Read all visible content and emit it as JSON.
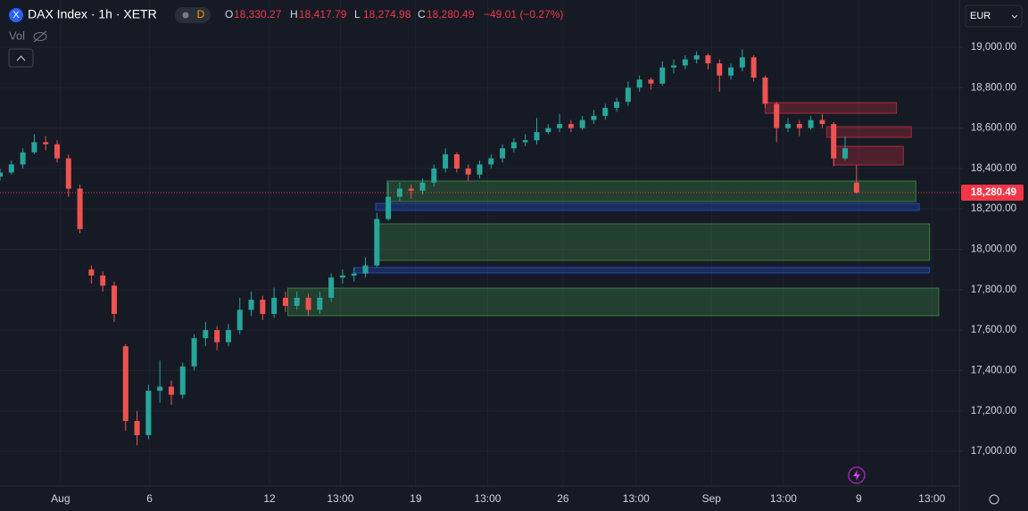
{
  "header": {
    "symbol_icon": "X",
    "title": "DAX Index · 1h · XETR",
    "badge": "D",
    "ohlc": [
      {
        "key": "O",
        "text": "18,330.27"
      },
      {
        "key": "H",
        "text": "18,417.79"
      },
      {
        "key": "L",
        "text": "18,274.98"
      },
      {
        "key": "C",
        "text": "18,280.49"
      }
    ],
    "change": "−49.01 (−0.27%)",
    "volume": "Vol",
    "currency": "EUR"
  },
  "chart_data": {
    "type": "candlestick",
    "up_color": "#26a69a",
    "down_color": "#ef5350",
    "grid": true,
    "xlim": [
      0,
      84
    ],
    "ylim": [
      16828,
      19234
    ],
    "xticks": [
      {
        "value": 5.3,
        "label": "Aug"
      },
      {
        "value": 13.1,
        "label": "6"
      },
      {
        "value": 23.6,
        "label": "12"
      },
      {
        "value": 29.8,
        "label": "13:00"
      },
      {
        "value": 36.4,
        "label": "19"
      },
      {
        "value": 42.7,
        "label": "13:00"
      },
      {
        "value": 49.3,
        "label": "26"
      },
      {
        "value": 55.7,
        "label": "13:00"
      },
      {
        "value": 62.3,
        "label": "Sep"
      },
      {
        "value": 68.6,
        "label": "13:00"
      },
      {
        "value": 75.2,
        "label": "9"
      },
      {
        "value": 81.6,
        "label": "13:00"
      }
    ],
    "yticks": [
      {
        "value": 17000,
        "label": "17,000.00"
      },
      {
        "value": 17200,
        "label": "17,200.00"
      },
      {
        "value": 17400,
        "label": "17,400.00"
      },
      {
        "value": 17600,
        "label": "17,600.00"
      },
      {
        "value": 17800,
        "label": "17,800.00"
      },
      {
        "value": 18000,
        "label": "18,000.00"
      },
      {
        "value": 18200,
        "label": "18,200.00"
      },
      {
        "value": 18400,
        "label": "18,400.00"
      },
      {
        "value": 18600,
        "label": "18,600.00"
      },
      {
        "value": 18800,
        "label": "18,800.00"
      },
      {
        "value": 19000,
        "label": "19,000.00"
      }
    ],
    "last_price": {
      "value": 18280.49,
      "label": "18,280.49"
    },
    "candles": [
      [
        18360,
        18400,
        18340,
        18380
      ],
      [
        18380,
        18440,
        18370,
        18420
      ],
      [
        18420,
        18500,
        18400,
        18480
      ],
      [
        18480,
        18570,
        18470,
        18530
      ],
      [
        18530,
        18560,
        18490,
        18520
      ],
      [
        18520,
        18540,
        18430,
        18450
      ],
      [
        18450,
        18470,
        18260,
        18300
      ],
      [
        18300,
        18320,
        18080,
        18100
      ],
      [
        17900,
        17920,
        17830,
        17870
      ],
      [
        17870,
        17890,
        17790,
        17820
      ],
      [
        17820,
        17840,
        17640,
        17680
      ],
      [
        17520,
        17530,
        17100,
        17150
      ],
      [
        17150,
        17200,
        17030,
        17080
      ],
      [
        17080,
        17330,
        17060,
        17300
      ],
      [
        17300,
        17450,
        17240,
        17320
      ],
      [
        17320,
        17350,
        17230,
        17280
      ],
      [
        17280,
        17440,
        17260,
        17420
      ],
      [
        17420,
        17580,
        17400,
        17560
      ],
      [
        17560,
        17640,
        17520,
        17600
      ],
      [
        17600,
        17620,
        17500,
        17540
      ],
      [
        17540,
        17630,
        17520,
        17600
      ],
      [
        17600,
        17760,
        17580,
        17700
      ],
      [
        17700,
        17790,
        17670,
        17750
      ],
      [
        17750,
        17770,
        17650,
        17680
      ],
      [
        17680,
        17810,
        17660,
        17760
      ],
      [
        17760,
        17790,
        17690,
        17720
      ],
      [
        17720,
        17790,
        17700,
        17760
      ],
      [
        17760,
        17780,
        17670,
        17700
      ],
      [
        17700,
        17790,
        17680,
        17760
      ],
      [
        17760,
        17880,
        17740,
        17860
      ],
      [
        17860,
        17900,
        17830,
        17870
      ],
      [
        17870,
        17910,
        17840,
        17880
      ],
      [
        17880,
        17960,
        17860,
        17920
      ],
      [
        17920,
        18180,
        17910,
        18150
      ],
      [
        18150,
        18330,
        18140,
        18260
      ],
      [
        18260,
        18330,
        18240,
        18300
      ],
      [
        18300,
        18320,
        18250,
        18290
      ],
      [
        18290,
        18350,
        18270,
        18330
      ],
      [
        18330,
        18420,
        18310,
        18400
      ],
      [
        18400,
        18500,
        18380,
        18470
      ],
      [
        18470,
        18480,
        18380,
        18400
      ],
      [
        18400,
        18420,
        18340,
        18370
      ],
      [
        18370,
        18440,
        18350,
        18420
      ],
      [
        18420,
        18470,
        18400,
        18450
      ],
      [
        18450,
        18520,
        18430,
        18500
      ],
      [
        18500,
        18550,
        18480,
        18530
      ],
      [
        18530,
        18570,
        18510,
        18540
      ],
      [
        18540,
        18650,
        18520,
        18580
      ],
      [
        18580,
        18620,
        18570,
        18600
      ],
      [
        18600,
        18670,
        18580,
        18620
      ],
      [
        18620,
        18640,
        18580,
        18600
      ],
      [
        18600,
        18660,
        18590,
        18640
      ],
      [
        18640,
        18690,
        18620,
        18660
      ],
      [
        18660,
        18720,
        18640,
        18700
      ],
      [
        18700,
        18750,
        18680,
        18730
      ],
      [
        18730,
        18830,
        18710,
        18800
      ],
      [
        18800,
        18860,
        18780,
        18840
      ],
      [
        18840,
        18850,
        18790,
        18820
      ],
      [
        18820,
        18930,
        18810,
        18900
      ],
      [
        18900,
        18940,
        18870,
        18910
      ],
      [
        18910,
        18960,
        18890,
        18940
      ],
      [
        18940,
        18980,
        18920,
        18960
      ],
      [
        18960,
        18970,
        18890,
        18920
      ],
      [
        18920,
        18940,
        18780,
        18860
      ],
      [
        18860,
        18920,
        18840,
        18900
      ],
      [
        18900,
        18990,
        18880,
        18950
      ],
      [
        18950,
        18960,
        18830,
        18850
      ],
      [
        18850,
        18860,
        18700,
        18720
      ],
      [
        18720,
        18730,
        18530,
        18600
      ],
      [
        18600,
        18650,
        18580,
        18620
      ],
      [
        18620,
        18640,
        18560,
        18600
      ],
      [
        18600,
        18660,
        18590,
        18640
      ],
      [
        18640,
        18670,
        18600,
        18620
      ],
      [
        18620,
        18630,
        18410,
        18450
      ],
      [
        18450,
        18560,
        18440,
        18500
      ],
      [
        18330.27,
        18417.79,
        18274.98,
        18280.49
      ]
    ],
    "zones": [
      {
        "x": [
          67.0,
          78.5
        ],
        "y": [
          18673,
          18726
        ],
        "color": "#f23645"
      },
      {
        "x": [
          72.4,
          79.8
        ],
        "y": [
          18554,
          18607
        ],
        "color": "#f23645"
      },
      {
        "x": [
          73.0,
          79.1
        ],
        "y": [
          18417,
          18510
        ],
        "color": "#f23645"
      },
      {
        "x": [
          33.9,
          80.2
        ],
        "y": [
          18236,
          18338
        ],
        "color": "#4caf50"
      },
      {
        "x": [
          32.9,
          80.5
        ],
        "y": [
          18192,
          18227
        ],
        "color": "#2962ff"
      },
      {
        "x": [
          32.9,
          81.4
        ],
        "y": [
          17945,
          18126
        ],
        "color": "#4caf50"
      },
      {
        "x": [
          31.0,
          81.4
        ],
        "y": [
          17883,
          17910
        ],
        "color": "#2962ff"
      },
      {
        "x": [
          25.2,
          82.2
        ],
        "y": [
          17671,
          17808
        ],
        "color": "#4caf50"
      }
    ]
  }
}
